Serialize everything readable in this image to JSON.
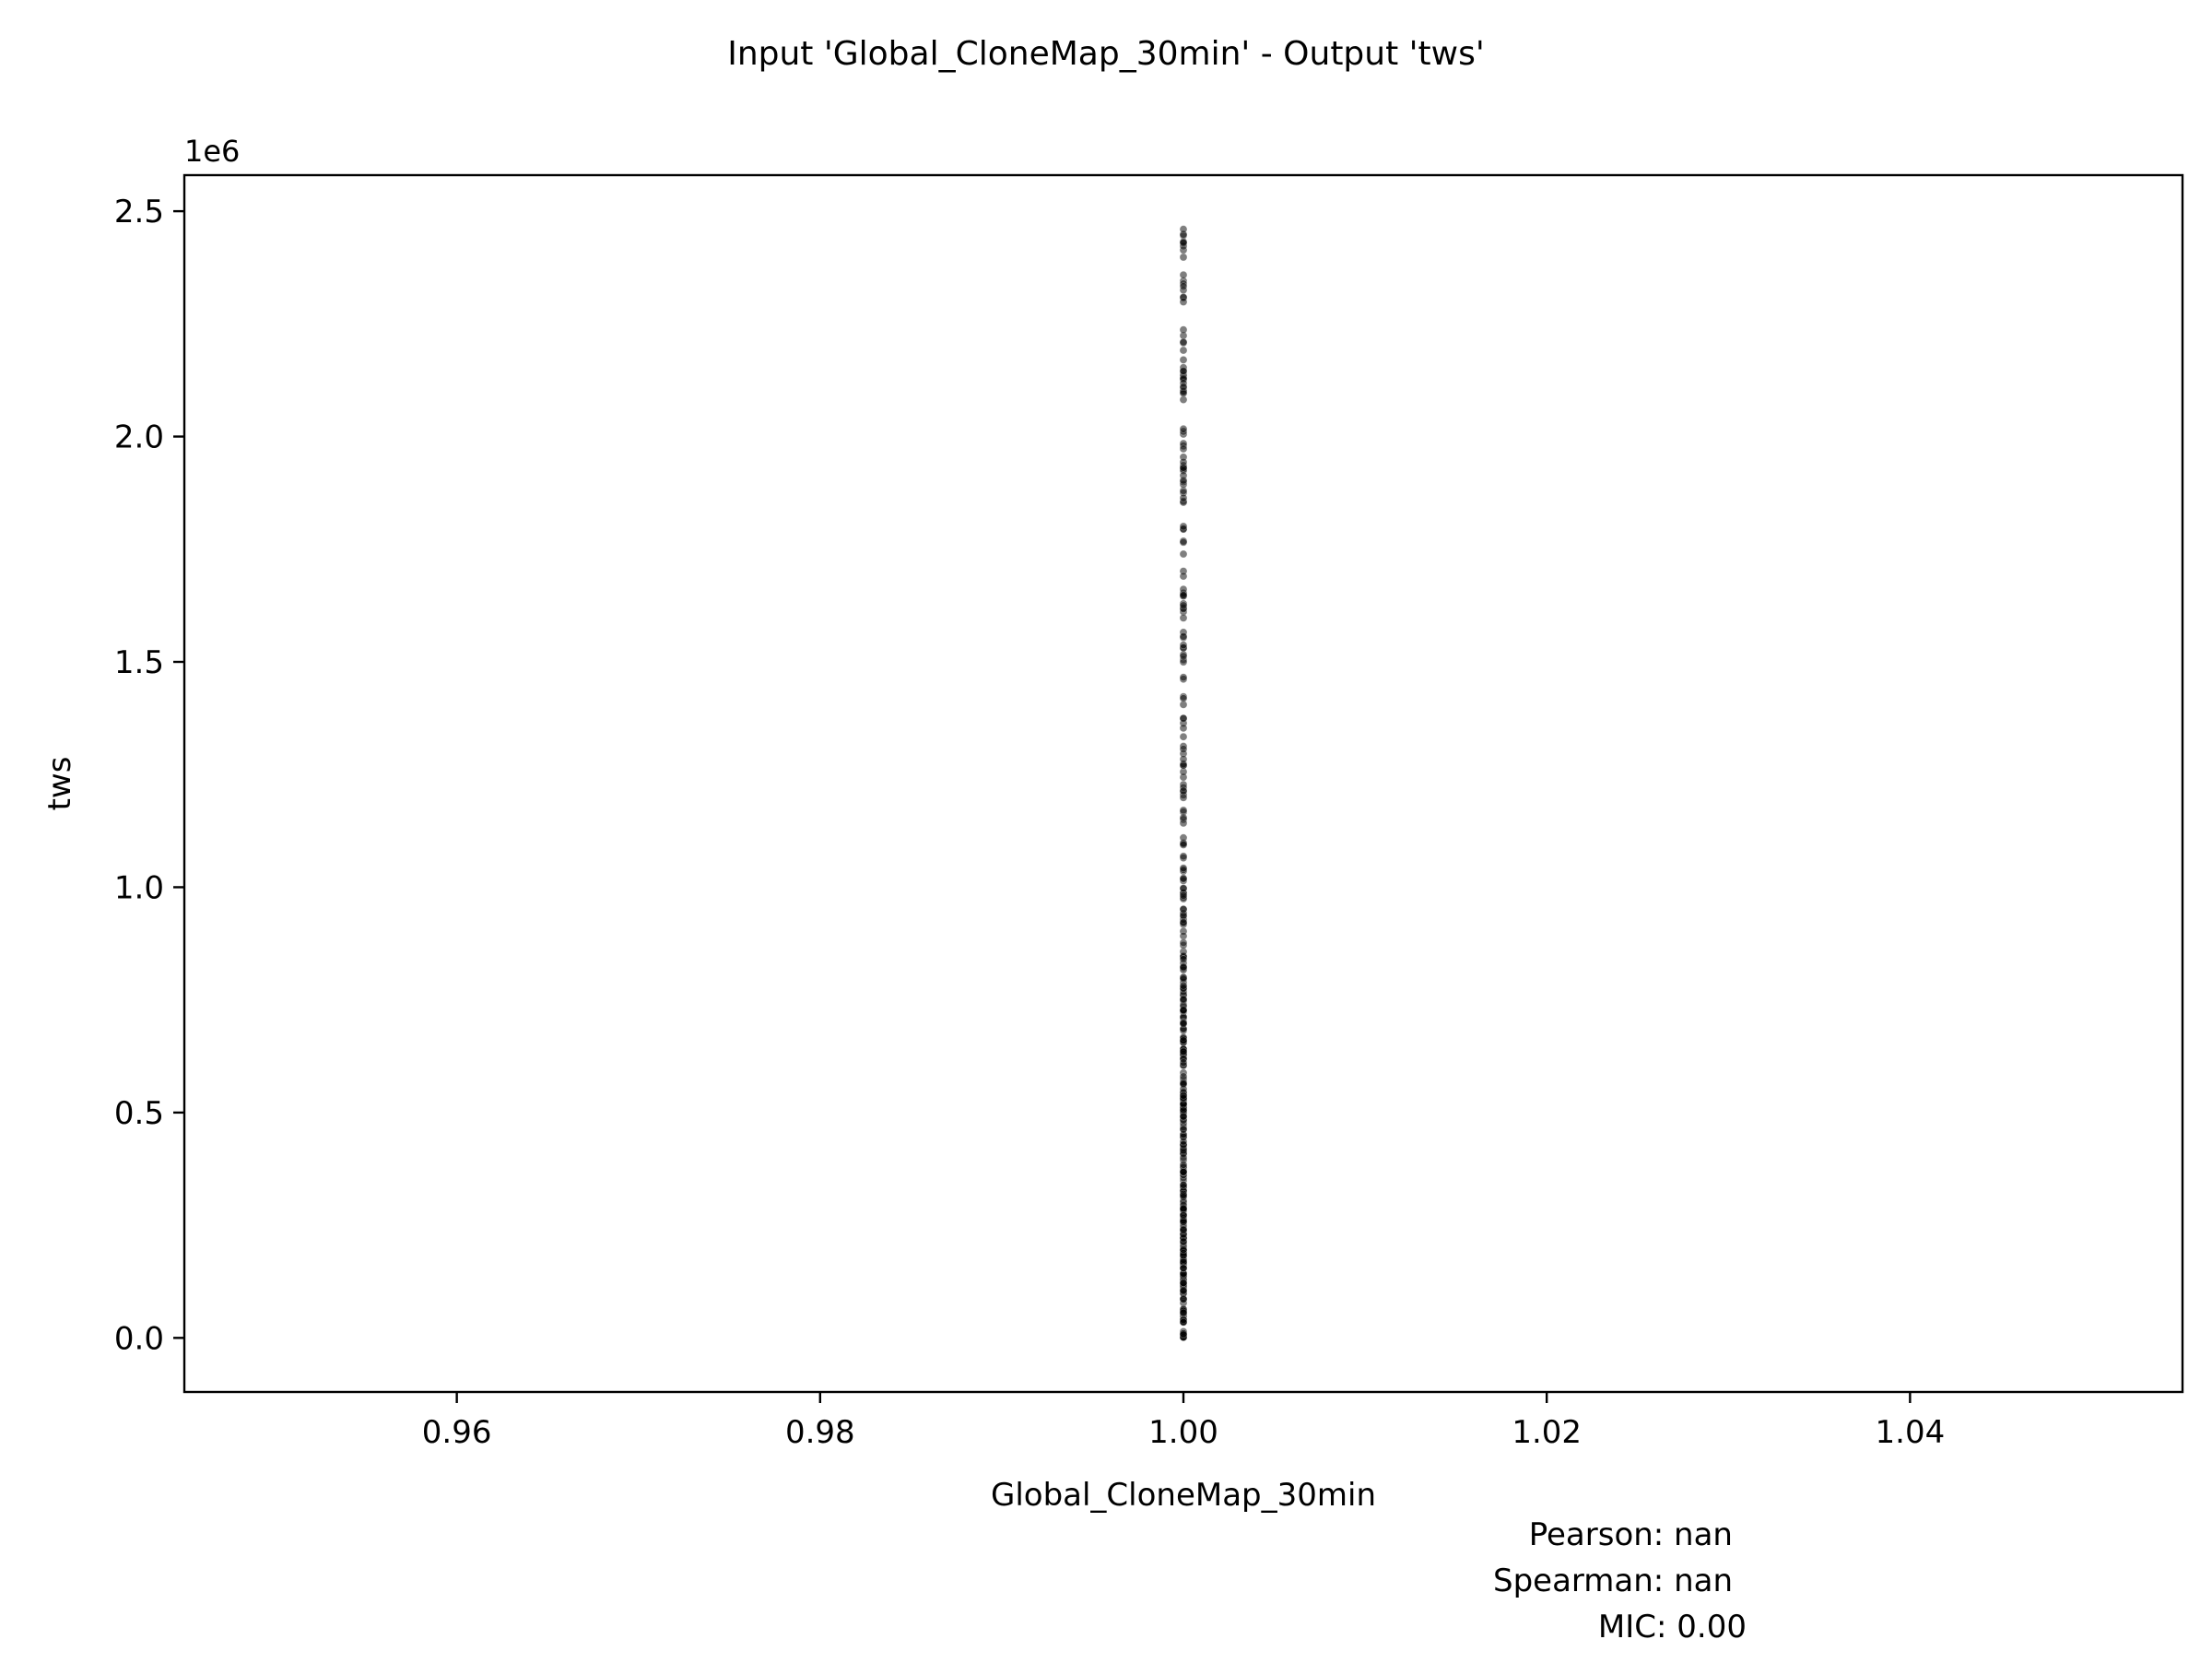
{
  "chart_data": {
    "type": "scatter",
    "title": "Input 'Global_CloneMap_30min' - Output 'tws'",
    "xlabel": "Global_CloneMap_30min",
    "ylabel": "tws",
    "y_offset_label": "1e6",
    "xlim": [
      0.945,
      1.055
    ],
    "ylim": [
      -0.12,
      2.58
    ],
    "x_ticks": [
      {
        "value": 0.96,
        "label": "0.96"
      },
      {
        "value": 0.98,
        "label": "0.98"
      },
      {
        "value": 1.0,
        "label": "1.00"
      },
      {
        "value": 1.02,
        "label": "1.02"
      },
      {
        "value": 1.04,
        "label": "1.04"
      }
    ],
    "y_ticks": [
      {
        "value": 0.0,
        "label": "0.0"
      },
      {
        "value": 0.5,
        "label": "0.5"
      },
      {
        "value": 1.0,
        "label": "1.0"
      },
      {
        "value": 1.5,
        "label": "1.5"
      },
      {
        "value": 2.0,
        "label": "2.0"
      },
      {
        "value": 2.5,
        "label": "2.5"
      }
    ],
    "series": [
      {
        "x_value": 1.0,
        "y_min": 0.0,
        "y_max": 2.46,
        "y_dense_max": 0.85,
        "marker_color": "#000000",
        "marker_alpha": 0.5
      }
    ],
    "grid": false,
    "legend": "none"
  },
  "stats": {
    "pearson": "Pearson: nan",
    "spearman": "Spearman: nan",
    "mic": "MIC: 0.00"
  }
}
